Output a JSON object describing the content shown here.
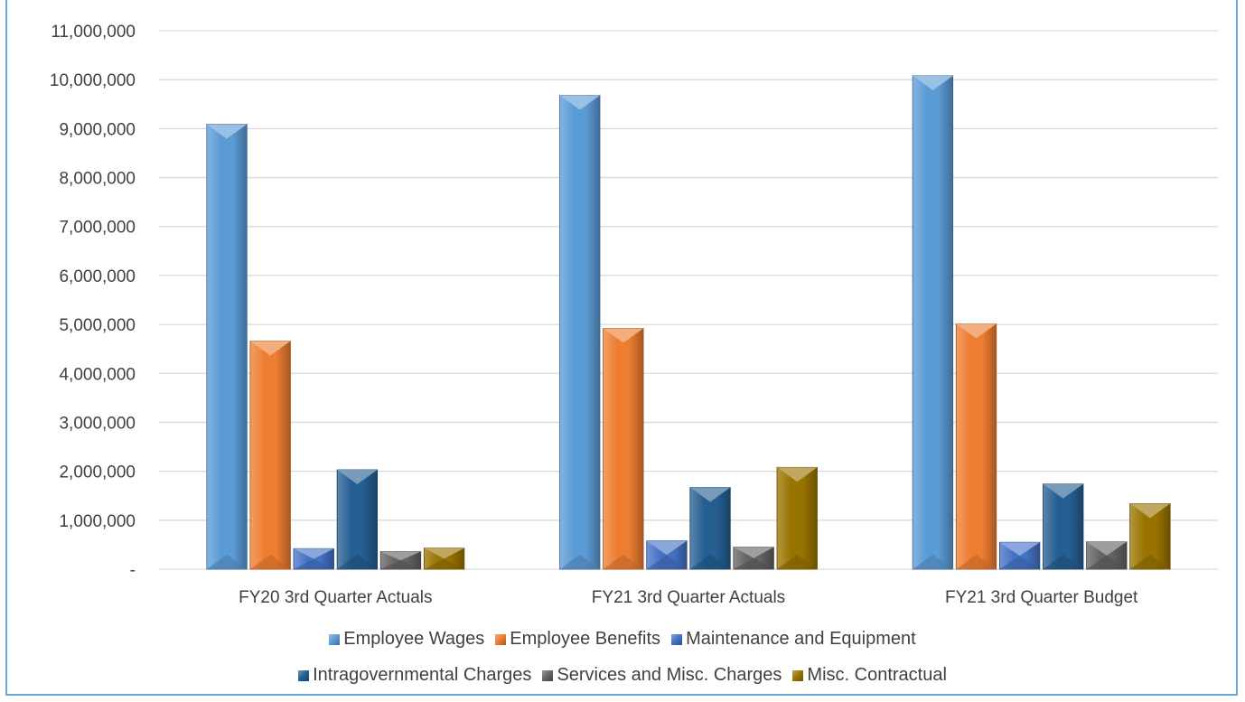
{
  "chart_data": {
    "type": "bar",
    "title": "",
    "categories": [
      "FY20 3rd Quarter Actuals",
      "FY21 3rd Quarter Actuals",
      "FY21 3rd Quarter Budget"
    ],
    "series": [
      {
        "name": "Employee Wages",
        "color": "#5b9bd5",
        "values": [
          9090000,
          9680000,
          10080000
        ]
      },
      {
        "name": "Employee Benefits",
        "color": "#ed7d31",
        "values": [
          4660000,
          4920000,
          5010000
        ]
      },
      {
        "name": "Maintenance and Equipment",
        "color": "#4472c4",
        "values": [
          420000,
          580000,
          550000
        ]
      },
      {
        "name": "Intragovernmental Charges",
        "color": "#255e91",
        "values": [
          2030000,
          1670000,
          1740000
        ]
      },
      {
        "name": "Services and Misc. Charges",
        "color": "#636363",
        "values": [
          360000,
          450000,
          560000
        ]
      },
      {
        "name": "Misc. Contractual",
        "color": "#997300",
        "values": [
          430000,
          2080000,
          1340000
        ]
      }
    ],
    "ylim": [
      0,
      11000000
    ],
    "yticks": [
      0,
      1000000,
      2000000,
      3000000,
      4000000,
      5000000,
      6000000,
      7000000,
      8000000,
      9000000,
      10000000,
      11000000
    ],
    "ytick_labels": [
      "-",
      "1,000,000",
      "2,000,000",
      "3,000,000",
      "4,000,000",
      "5,000,000",
      "6,000,000",
      "7,000,000",
      "8,000,000",
      "9,000,000",
      "10,000,000",
      "11,000,000"
    ],
    "grid": true,
    "legend_position": "bottom"
  }
}
